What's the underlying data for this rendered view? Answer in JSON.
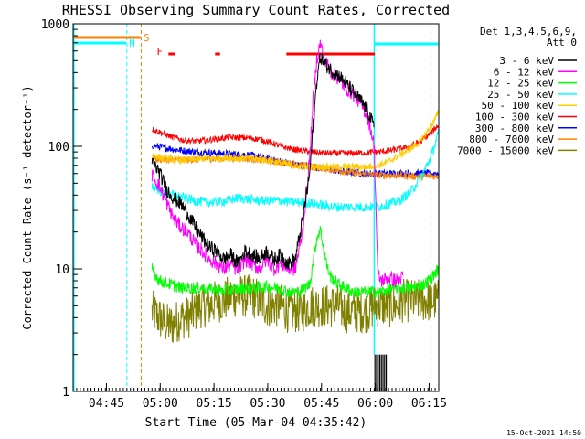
{
  "chart_data": {
    "type": "line",
    "title": "RHESSI Observing Summary Count Rates, Corrected",
    "xlabel": "Start Time (05-Mar-04 04:35:42)",
    "ylabel": "Corrected Count Rate (s⁻¹ detector⁻¹)",
    "yscale": "log",
    "ylim": [
      1,
      1000
    ],
    "xlim_minutes": [
      0,
      102
    ],
    "x_ticks": [
      {
        "t": 9.3,
        "label": "04:45"
      },
      {
        "t": 24.3,
        "label": "05:00"
      },
      {
        "t": 39.3,
        "label": "05:15"
      },
      {
        "t": 54.3,
        "label": "05:30"
      },
      {
        "t": 69.3,
        "label": "05:45"
      },
      {
        "t": 84.3,
        "label": "06:00"
      },
      {
        "t": 99.3,
        "label": "06:15"
      }
    ],
    "y_ticks": [
      {
        "v": 1,
        "label": "1"
      },
      {
        "v": 10,
        "label": "10"
      },
      {
        "v": 100,
        "label": "100"
      },
      {
        "v": 1000,
        "label": "1000"
      }
    ],
    "legend_header": [
      "Det 1,3,4,5,6,9,",
      "Att 0"
    ],
    "series": [
      {
        "name": "3 - 6 keV",
        "color": "#000000",
        "x": [
          22,
          24,
          26,
          28,
          30,
          32,
          34,
          36,
          38,
          40,
          42,
          44,
          46,
          48,
          50,
          52,
          54,
          56,
          58,
          60,
          62,
          64,
          66,
          67,
          68,
          69,
          70,
          72,
          74,
          76,
          78,
          80,
          82,
          83,
          84
        ],
        "y": [
          75,
          62,
          45,
          38,
          34,
          28,
          22,
          18,
          15,
          14,
          12,
          13,
          11,
          14,
          13,
          12,
          14,
          12,
          13,
          11,
          12,
          25,
          60,
          150,
          350,
          550,
          480,
          420,
          380,
          330,
          280,
          240,
          200,
          170,
          140
        ]
      },
      {
        "name": "6 - 12 keV",
        "color": "#ff00ff",
        "x": [
          22,
          24,
          26,
          28,
          30,
          32,
          34,
          36,
          38,
          40,
          42,
          44,
          46,
          48,
          50,
          52,
          54,
          56,
          58,
          60,
          62,
          64,
          66,
          67,
          68,
          69,
          70,
          72,
          74,
          76,
          78,
          80,
          82,
          83,
          84,
          85,
          86,
          88,
          90,
          92
        ],
        "y": [
          58,
          48,
          35,
          26,
          22,
          20,
          16,
          14,
          12,
          11,
          10,
          11,
          9.5,
          12,
          11,
          10,
          12,
          10,
          11,
          10,
          10,
          20,
          80,
          250,
          520,
          700,
          520,
          400,
          360,
          300,
          270,
          230,
          180,
          140,
          100,
          9,
          8,
          8.5,
          8,
          8.5
        ]
      },
      {
        "name": "12 - 25 keV",
        "color": "#00ff00",
        "x": [
          22,
          24,
          27,
          30,
          33,
          36,
          39,
          42,
          45,
          48,
          51,
          54,
          57,
          60,
          63,
          66,
          68,
          69,
          70,
          71,
          72,
          74,
          76,
          78,
          80,
          82,
          84,
          86,
          88,
          90,
          92,
          94,
          96,
          98,
          100,
          102
        ],
        "y": [
          10,
          8,
          7.5,
          7,
          7,
          7,
          6.8,
          6.6,
          6.8,
          7,
          7,
          7.2,
          7,
          6.5,
          6.5,
          7.5,
          18,
          21,
          14,
          10,
          8.5,
          7.5,
          7,
          6.5,
          6.5,
          6.5,
          6.5,
          6.5,
          6.8,
          7,
          7,
          7,
          7.2,
          7.5,
          8.5,
          10
        ]
      },
      {
        "name": "25 - 50 keV",
        "color": "#00ffff",
        "x": [
          22,
          25,
          28,
          31,
          34,
          37,
          40,
          43,
          46,
          49,
          52,
          55,
          58,
          61,
          64,
          67,
          70,
          73,
          76,
          79,
          82,
          85,
          88,
          91,
          94,
          97,
          100,
          102
        ],
        "y": [
          48,
          42,
          40,
          38,
          36,
          35,
          35,
          36,
          38,
          37,
          36,
          36,
          36,
          35,
          35,
          34,
          33,
          32,
          32,
          32,
          32,
          32,
          34,
          36,
          42,
          55,
          85,
          130
        ]
      },
      {
        "name": "50 - 100 keV",
        "color": "#ffcc00",
        "x": [
          22,
          25,
          28,
          31,
          34,
          37,
          40,
          43,
          46,
          49,
          52,
          55,
          58,
          61,
          64,
          67,
          70,
          73,
          76,
          79,
          82,
          85,
          88,
          91,
          94,
          97,
          100,
          102
        ],
        "y": [
          85,
          80,
          78,
          77,
          78,
          80,
          80,
          81,
          80,
          80,
          78,
          76,
          73,
          70,
          68,
          68,
          68,
          68,
          68,
          68,
          68,
          70,
          75,
          85,
          95,
          110,
          150,
          190
        ]
      },
      {
        "name": "100 - 300 keV",
        "color": "#ff0000",
        "x": [
          22,
          25,
          28,
          31,
          34,
          37,
          40,
          43,
          46,
          49,
          52,
          55,
          58,
          61,
          64,
          67,
          70,
          73,
          76,
          79,
          82,
          85,
          88,
          91,
          94,
          97,
          100,
          102
        ],
        "y": [
          138,
          128,
          118,
          112,
          110,
          112,
          115,
          118,
          118,
          117,
          114,
          108,
          100,
          95,
          92,
          90,
          88,
          88,
          88,
          88,
          89,
          90,
          92,
          95,
          100,
          110,
          130,
          150
        ]
      },
      {
        "name": "300 - 800 keV",
        "color": "#0000ff",
        "x": [
          22,
          25,
          28,
          31,
          34,
          37,
          40,
          43,
          46,
          49,
          52,
          55,
          58,
          61,
          64,
          67,
          70,
          73,
          76,
          79,
          82,
          85,
          88,
          91,
          94,
          97,
          100,
          102
        ],
        "y": [
          102,
          98,
          95,
          92,
          90,
          89,
          88,
          87,
          86,
          85,
          82,
          78,
          75,
          72,
          70,
          68,
          66,
          64,
          62,
          61,
          60,
          60,
          60,
          60,
          60,
          60,
          60,
          60
        ]
      },
      {
        "name": "800 - 7000 keV",
        "color": "#ff8000",
        "x": [
          22,
          25,
          28,
          31,
          34,
          37,
          40,
          43,
          46,
          49,
          52,
          55,
          58,
          61,
          64,
          67,
          70,
          73,
          76,
          79,
          82,
          85,
          88,
          91,
          94,
          97,
          100,
          102
        ],
        "y": [
          80,
          78,
          77,
          77,
          78,
          79,
          79,
          80,
          80,
          79,
          78,
          76,
          74,
          72,
          70,
          68,
          66,
          64,
          62,
          60,
          59,
          58,
          58,
          58,
          57,
          57,
          57,
          57
        ]
      },
      {
        "name": "7000 - 15000 keV",
        "color": "#808000",
        "x": [
          22,
          24,
          26,
          28,
          30,
          32,
          34,
          36,
          38,
          40,
          42,
          44,
          46,
          48,
          50,
          52,
          54,
          56,
          58,
          60,
          62,
          64,
          66,
          68,
          70,
          72,
          74,
          76,
          78,
          80,
          82,
          84,
          86,
          88,
          90,
          92,
          94,
          96,
          98,
          100,
          102
        ],
        "y": [
          4.5,
          4,
          3.5,
          3.5,
          4,
          4,
          4.5,
          5,
          5,
          5.5,
          5.5,
          6,
          6,
          6,
          6,
          5.5,
          5,
          5,
          5,
          4.5,
          4.5,
          4.5,
          5,
          5,
          5,
          5,
          5,
          4.5,
          4.5,
          4.5,
          4.5,
          5,
          5,
          5,
          5,
          5.5,
          5.5,
          5.5,
          5.5,
          5.5,
          5.5
        ]
      }
    ],
    "flag_labels": {
      "saa": "S",
      "night": "N",
      "flare": "F"
    },
    "flare_bars": [
      [
        26.6,
        28.3
      ],
      [
        39.6,
        41.0
      ],
      [
        59.5,
        84.2
      ]
    ]
  },
  "timestamp": "15-Oct-2021 14:50"
}
